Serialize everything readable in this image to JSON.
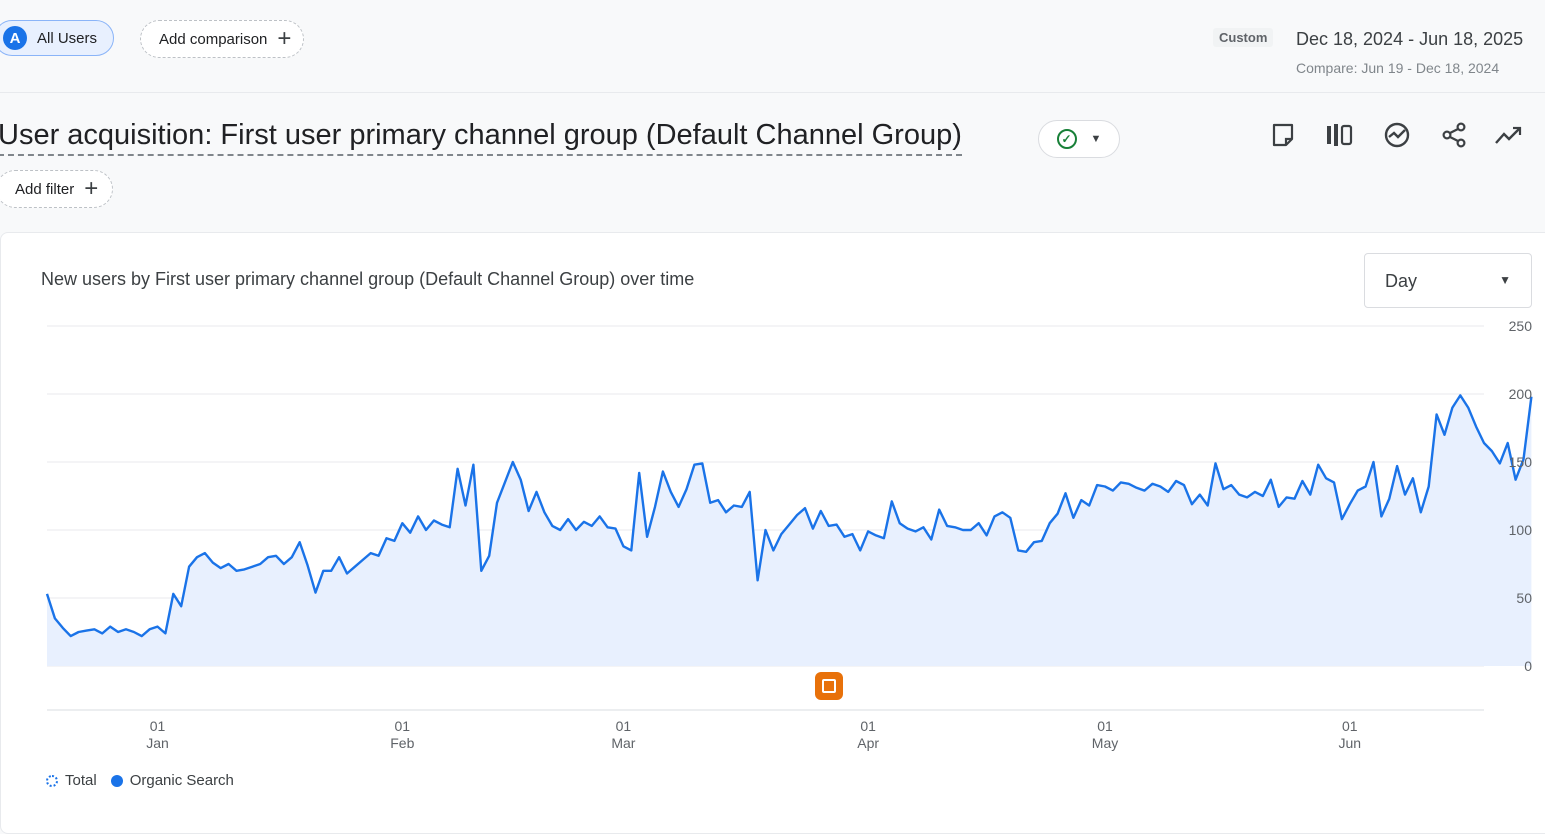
{
  "topbar": {
    "segment": {
      "avatar_letter": "A",
      "label": "All Users"
    },
    "add_comparison_label": "Add comparison",
    "date_tag": "Custom",
    "date_range": "Dec 18, 2024 - Jun 18, 2025",
    "compare_range": "Compare: Jun 19 - Dec 18, 2024"
  },
  "report": {
    "title": "User acquisition: First user primary channel group (Default Channel Group)",
    "add_filter_label": "Add filter",
    "toolbar_icons": [
      "edit-note-icon",
      "compare-columns-icon",
      "insights-icon",
      "share-icon",
      "trending-icon"
    ]
  },
  "chart_card": {
    "title": "New users by First user primary channel group (Default Channel Group) over time",
    "interval_select": "Day"
  },
  "colors": {
    "accent": "#1a73e8",
    "fill": "#e8f0fe",
    "annotation": "#e8710a"
  },
  "chart_data": {
    "type": "line",
    "title": "New users by First user primary channel group (Default Channel Group) over time",
    "xlabel": "",
    "ylabel": "",
    "ylim": [
      0,
      250
    ],
    "y_ticks": [
      "250",
      "200",
      "150",
      "100",
      "50",
      "0"
    ],
    "x_ticks": [
      {
        "day": "01",
        "month": "Jan"
      },
      {
        "day": "01",
        "month": "Feb"
      },
      {
        "day": "01",
        "month": "Mar"
      },
      {
        "day": "01",
        "month": "Apr"
      },
      {
        "day": "01",
        "month": "May"
      },
      {
        "day": "01",
        "month": "Jun"
      }
    ],
    "x_range": [
      "2024-12-18",
      "2025-06-18"
    ],
    "grid": true,
    "legend": "bottom-left",
    "series": [
      {
        "name": "Organic Search",
        "start_date": "2024-12-18",
        "values": [
          53,
          35,
          28,
          22,
          25,
          26,
          27,
          24,
          29,
          25,
          27,
          25,
          22,
          27,
          29,
          24,
          53,
          44,
          73,
          80,
          83,
          76,
          72,
          75,
          70,
          71,
          73,
          75,
          80,
          81,
          75,
          80,
          91,
          74,
          54,
          70,
          70,
          80,
          68,
          73,
          78,
          83,
          81,
          94,
          92,
          105,
          98,
          110,
          100,
          107,
          104,
          102,
          145,
          118,
          148,
          70,
          81,
          120,
          135,
          150,
          137,
          114,
          128,
          113,
          103,
          100,
          108,
          100,
          106,
          103,
          110,
          102,
          101,
          88,
          85,
          142,
          95,
          117,
          143,
          128,
          117,
          130,
          148,
          149,
          120,
          122,
          113,
          118,
          117,
          128,
          63,
          100,
          85,
          97,
          104,
          111,
          116,
          101,
          114,
          103,
          104,
          95,
          97,
          85,
          99,
          96,
          94,
          121,
          105,
          101,
          99,
          102,
          93,
          115,
          103,
          102,
          100,
          100,
          105,
          96,
          110,
          113,
          109,
          85,
          84,
          91,
          92,
          105,
          112,
          127,
          109,
          122,
          118,
          133,
          132,
          129,
          135,
          134,
          131,
          129,
          134,
          132,
          128,
          136,
          133,
          119,
          126,
          118,
          149,
          130,
          133,
          126,
          124,
          128,
          125,
          137,
          117,
          124,
          123,
          136,
          126,
          148,
          138,
          135,
          108,
          119,
          129,
          132,
          150,
          110,
          123,
          147,
          126,
          138,
          113,
          132,
          185,
          170,
          190,
          199,
          190,
          176,
          164,
          158,
          149,
          164,
          137,
          152,
          198
        ]
      }
    ]
  },
  "legend": {
    "total_label": "Total",
    "organic_label": "Organic Search"
  }
}
